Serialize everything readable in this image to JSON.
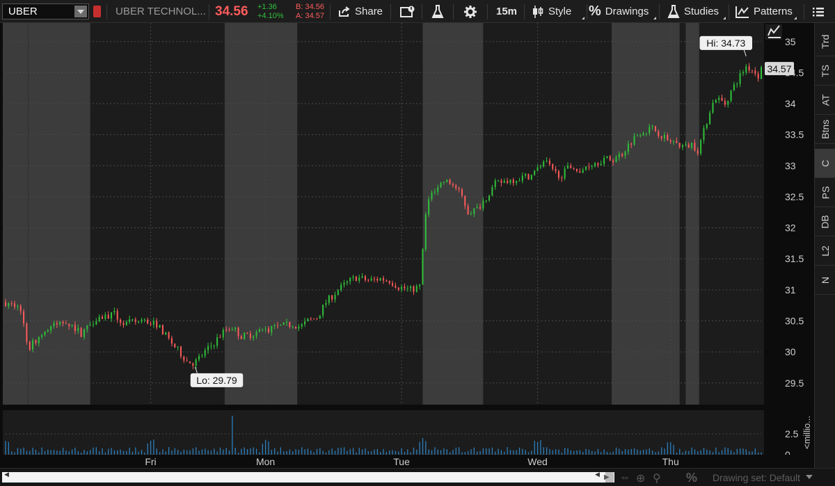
{
  "toolbar": {
    "symbol": "UBER",
    "company": "UBER TECHNOL...",
    "last": "34.56",
    "change": "+1.36",
    "change_pct": "+4.10%",
    "bid": "B: 34.56",
    "ask": "A: 34.57",
    "share": "Share",
    "timeframe": "15m",
    "style": "Style",
    "drawings": "Drawings",
    "studies": "Studies",
    "patterns": "Patterns"
  },
  "right_tabs": [
    "Trd",
    "TS",
    "AT",
    "Btns",
    "C",
    "PS",
    "DB",
    "L2",
    "N"
  ],
  "active_tab": "C",
  "bottom": {
    "drawing_set": "Drawing set: Default"
  },
  "colors": {
    "up": "#2fc23a",
    "down": "#ff5b5b",
    "background": "#1c1c1c",
    "session_band": "#3c3c3c",
    "volume": "#2a7fbf"
  },
  "chart_data": {
    "type": "candlestick",
    "symbol": "UBER",
    "interval": "15m",
    "ylim": [
      29.15,
      35.3
    ],
    "y_ticks": [
      "35",
      "34.5",
      "34",
      "33.5",
      "33",
      "32.5",
      "32",
      "31.5",
      "31",
      "30.5",
      "30",
      "29.5"
    ],
    "x_labels": [
      "Fri",
      "Mon",
      "Tue",
      "Wed",
      "Thu"
    ],
    "high_label": "Hi: 34.73",
    "low_label": "Lo: 29.79",
    "last_price_label": "34.57",
    "volume_axis_label": "<millio...",
    "volume_ticks": [
      "2.5",
      "0"
    ],
    "path": [
      [
        0,
        30.8
      ],
      [
        10,
        30.7
      ],
      [
        15,
        30.05
      ],
      [
        22,
        30.25
      ],
      [
        30,
        30.4
      ],
      [
        40,
        30.5
      ],
      [
        50,
        30.3
      ],
      [
        60,
        30.55
      ],
      [
        72,
        30.6
      ],
      [
        78,
        30.45
      ],
      [
        90,
        30.5
      ],
      [
        100,
        30.45
      ],
      [
        108,
        30.2
      ],
      [
        115,
        30.0
      ],
      [
        120,
        29.85
      ],
      [
        125,
        29.82
      ],
      [
        130,
        29.95
      ],
      [
        138,
        30.15
      ],
      [
        145,
        30.35
      ],
      [
        150,
        30.4
      ],
      [
        156,
        30.25
      ],
      [
        162,
        30.28
      ],
      [
        170,
        30.35
      ],
      [
        180,
        30.4
      ],
      [
        190,
        30.45
      ],
      [
        195,
        30.4
      ],
      [
        200,
        30.5
      ],
      [
        206,
        30.55
      ],
      [
        212,
        30.8
      ],
      [
        220,
        31.0
      ],
      [
        228,
        31.15
      ],
      [
        232,
        31.2
      ],
      [
        240,
        31.15
      ],
      [
        248,
        31.18
      ],
      [
        254,
        31.15
      ],
      [
        260,
        31.05
      ],
      [
        268,
        31.0
      ],
      [
        274,
        31.05
      ],
      [
        276,
        31.6
      ],
      [
        278,
        32.2
      ],
      [
        282,
        32.6
      ],
      [
        290,
        32.75
      ],
      [
        296,
        32.7
      ],
      [
        302,
        32.5
      ],
      [
        306,
        32.25
      ],
      [
        312,
        32.3
      ],
      [
        318,
        32.5
      ],
      [
        324,
        32.7
      ],
      [
        330,
        32.75
      ],
      [
        340,
        32.8
      ],
      [
        348,
        32.85
      ],
      [
        354,
        33.0
      ],
      [
        358,
        33.05
      ],
      [
        362,
        32.9
      ],
      [
        368,
        32.85
      ],
      [
        372,
        32.95
      ],
      [
        376,
        33.0
      ],
      [
        380,
        32.85
      ],
      [
        384,
        33.0
      ],
      [
        390,
        33.05
      ],
      [
        396,
        33.1
      ],
      [
        402,
        33.1
      ],
      [
        408,
        33.2
      ],
      [
        414,
        33.4
      ],
      [
        420,
        33.55
      ],
      [
        428,
        33.6
      ],
      [
        434,
        33.5
      ],
      [
        438,
        33.4
      ],
      [
        444,
        33.35
      ],
      [
        450,
        33.3
      ],
      [
        454,
        33.35
      ],
      [
        458,
        33.25
      ],
      [
        462,
        33.55
      ],
      [
        466,
        33.9
      ],
      [
        470,
        34.1
      ],
      [
        476,
        34.0
      ],
      [
        480,
        34.2
      ],
      [
        486,
        34.45
      ],
      [
        490,
        34.6
      ],
      [
        494,
        34.55
      ],
      [
        498,
        34.45
      ],
      [
        500,
        34.56
      ]
    ],
    "last_index": 500,
    "session_bands": [
      [
        15,
        56
      ],
      [
        145,
        193
      ],
      [
        276,
        316
      ],
      [
        401,
        446
      ]
    ]
  }
}
